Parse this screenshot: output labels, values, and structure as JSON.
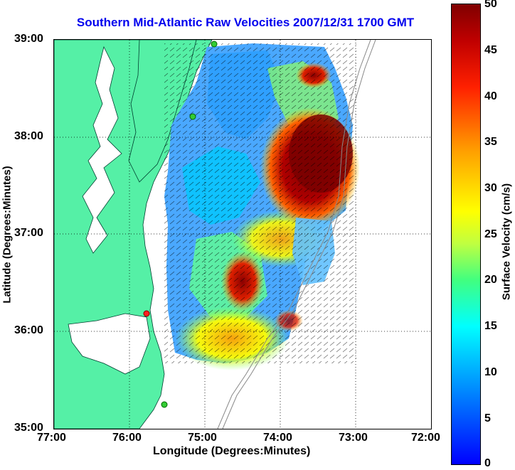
{
  "title": "Southern Mid-Atlantic Raw Velocities 2007/12/31 1700 GMT",
  "axes": {
    "xlabel": "Longitude (Degrees:Minutes)",
    "ylabel": "Latitude (Degrees:Minutes)",
    "x_ticks": [
      "77:00",
      "76:00",
      "75:00",
      "74:00",
      "73:00",
      "72:00"
    ],
    "y_ticks": [
      "39:00",
      "38:00",
      "37:00",
      "36:00",
      "35:00"
    ],
    "grid": "dotted"
  },
  "colorbar": {
    "label": "Surface Velocity (cm/s)",
    "ticks": [
      "50",
      "45",
      "40",
      "35",
      "30",
      "25",
      "20",
      "15",
      "10",
      "5",
      "0"
    ],
    "min": 0,
    "max": 50,
    "colormap": "jet"
  },
  "colors": {
    "land": "#55f0a6",
    "title": "#0000ee",
    "station": "#33cc33",
    "station_highlight": "#ff2020"
  }
}
